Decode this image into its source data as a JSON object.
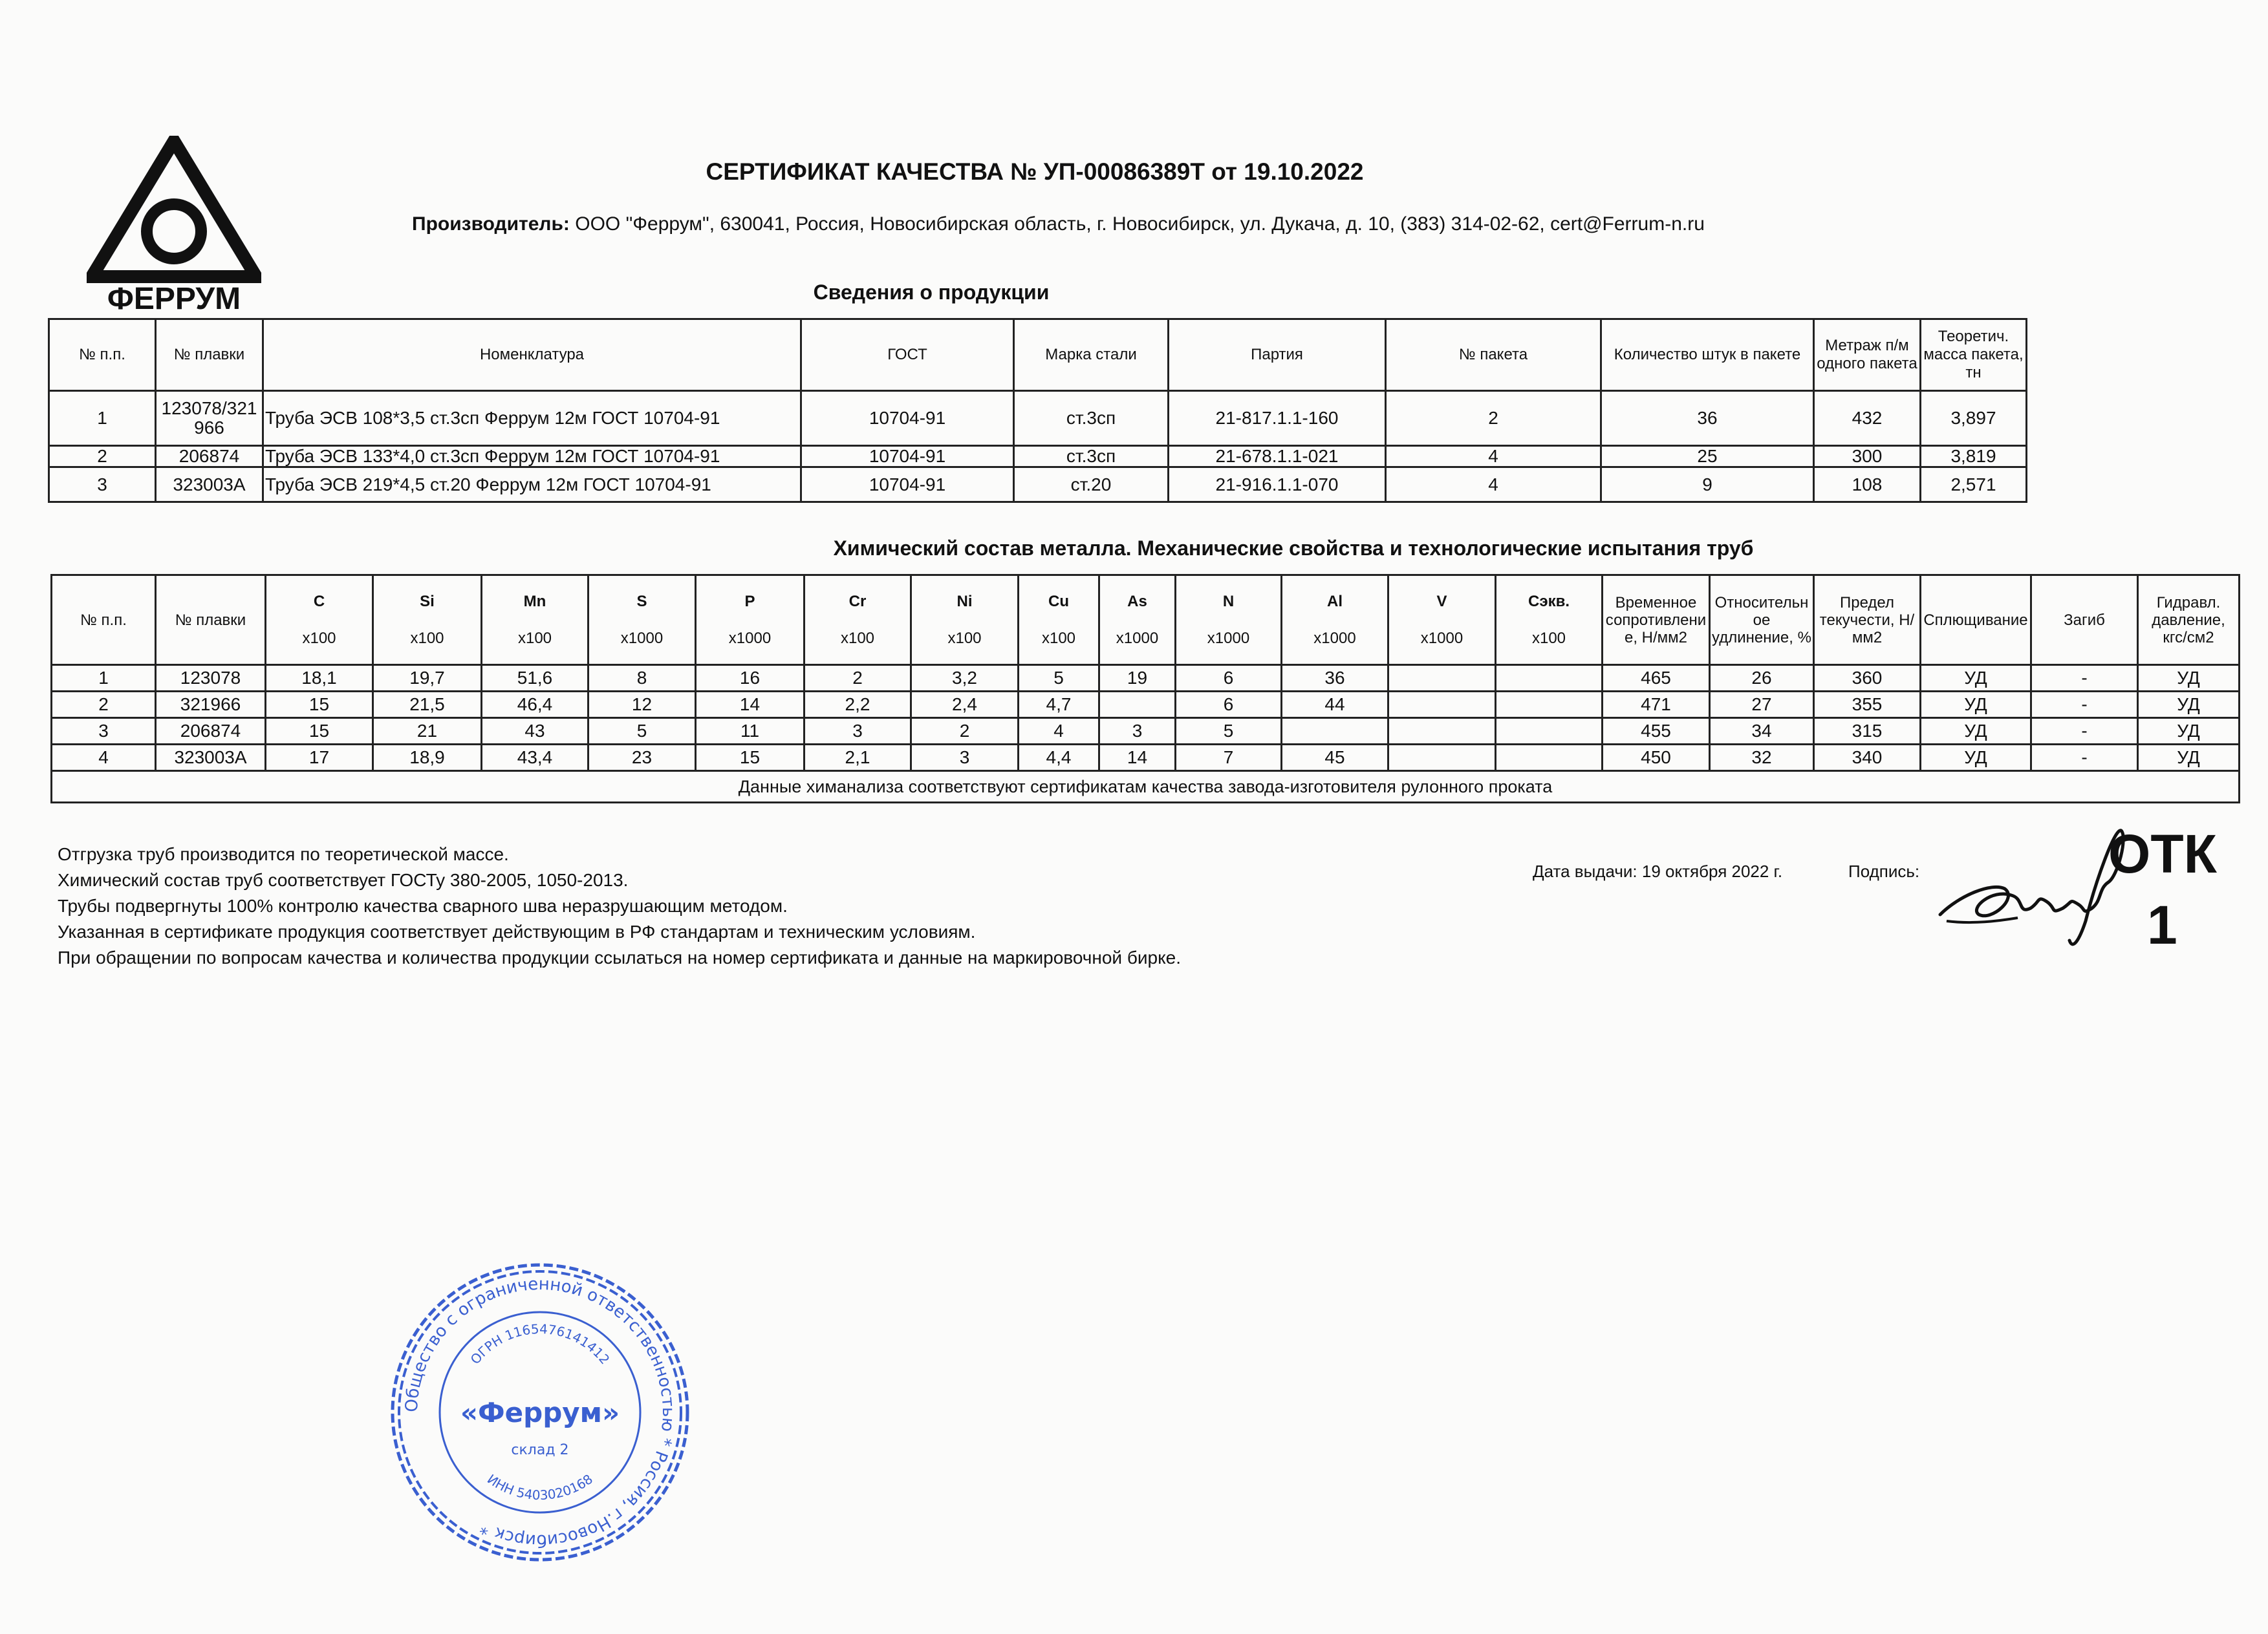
{
  "logo": {
    "text": "ФЕРРУМ"
  },
  "header": {
    "title": "СЕРТИФИКАТ КАЧЕСТВА № УП-00086389Т от 19.10.2022",
    "producer_label": "Производитель:",
    "producer_value": "ООО \"Феррум\", 630041, Россия, Новосибирская область, г. Новосибирск, ул. Дукача, д. 10, (383) 314-02-62, cert@Ferrum-n.ru"
  },
  "products": {
    "heading": "Сведения о продукции",
    "columns": [
      "№ п.п.",
      "№ плавки",
      "Номенклатура",
      "ГОСТ",
      "Марка стали",
      "Партия",
      "№ пакета",
      "Количество штук в пакете",
      "Метраж п/м одного пакета",
      "Теоретич. масса пакета, тн"
    ],
    "rows": [
      [
        "1",
        "123078/321966",
        "Труба ЭСВ 108*3,5 ст.3сп Феррум 12м ГОСТ 10704-91",
        "10704-91",
        "ст.3сп",
        "21-817.1.1-160",
        "2",
        "36",
        "432",
        "3,897"
      ],
      [
        "2",
        "206874",
        "Труба ЭСВ 133*4,0 ст.3сп Феррум 12м ГОСТ 10704-91",
        "10704-91",
        "ст.3сп",
        "21-678.1.1-021",
        "4",
        "25",
        "300",
        "3,819"
      ],
      [
        "3",
        "323003А",
        "Труба ЭСВ 219*4,5 ст.20 Феррум 12м ГОСТ 10704-91",
        "10704-91",
        "ст.20",
        "21-916.1.1-070",
        "4",
        "9",
        "108",
        "2,571"
      ]
    ]
  },
  "chemistry": {
    "heading": "Химический состав металла. Механические свойства  и технологические испытания труб",
    "columns": [
      {
        "label": "№ п.п.",
        "unit": ""
      },
      {
        "label": "№ плавки",
        "unit": ""
      },
      {
        "label": "C",
        "unit": "x100"
      },
      {
        "label": "Si",
        "unit": "x100"
      },
      {
        "label": "Mn",
        "unit": "x100"
      },
      {
        "label": "S",
        "unit": "x1000"
      },
      {
        "label": "P",
        "unit": "x1000"
      },
      {
        "label": "Cr",
        "unit": "x100"
      },
      {
        "label": "Ni",
        "unit": "x100"
      },
      {
        "label": "Cu",
        "unit": "x100"
      },
      {
        "label": "As",
        "unit": "x1000"
      },
      {
        "label": "N",
        "unit": "x1000"
      },
      {
        "label": "Al",
        "unit": "x1000"
      },
      {
        "label": "V",
        "unit": "x1000"
      },
      {
        "label": "Сэкв.",
        "unit": "x100"
      },
      {
        "label": "Временное сопротивление, Н/мм2",
        "unit": ""
      },
      {
        "label": "Относительное удлинение, %",
        "unit": ""
      },
      {
        "label": "Предел текучести, Н/мм2",
        "unit": ""
      },
      {
        "label": "Сплющивание",
        "unit": ""
      },
      {
        "label": "Загиб",
        "unit": ""
      },
      {
        "label": "Гидравл. давление, кгс/см2",
        "unit": ""
      }
    ],
    "rows": [
      [
        "1",
        "123078",
        "18,1",
        "19,7",
        "51,6",
        "8",
        "16",
        "2",
        "3,2",
        "5",
        "19",
        "6",
        "36",
        "",
        "",
        "465",
        "26",
        "360",
        "УД",
        "-",
        "УД"
      ],
      [
        "2",
        "321966",
        "15",
        "21,5",
        "46,4",
        "12",
        "14",
        "2,2",
        "2,4",
        "4,7",
        "",
        "6",
        "44",
        "",
        "",
        "471",
        "27",
        "355",
        "УД",
        "-",
        "УД"
      ],
      [
        "3",
        "206874",
        "15",
        "21",
        "43",
        "5",
        "11",
        "3",
        "2",
        "4",
        "3",
        "5",
        "",
        "",
        "",
        "455",
        "34",
        "315",
        "УД",
        "-",
        "УД"
      ],
      [
        "4",
        "323003А",
        "17",
        "18,9",
        "43,4",
        "23",
        "15",
        "2,1",
        "3",
        "4,4",
        "14",
        "7",
        "45",
        "",
        "",
        "450",
        "32",
        "340",
        "УД",
        "-",
        "УД"
      ]
    ],
    "footnote": "Данные химанализа соответствуют сертификатам качества завода-изготовителя рулонного проката"
  },
  "notes": [
    "Отгрузка труб производится по теоретической массе.",
    "Химический состав труб соответствует ГОСТу 380-2005, 1050-2013.",
    "Трубы подвергнуты 100% контролю качества сварного шва неразрушающим методом.",
    "Указанная в сертификате продукция соответствует действующим в РФ стандартам и техническим условиям.",
    "При обращении по вопросам качества и количества продукции ссылаться на номер сертификата и данные на маркировочной бирке."
  ],
  "footer": {
    "issue_date": "Дата выдачи: 19 октября 2022 г.",
    "signature_label": "Подпись:",
    "otk_stamp": "ОТК 1"
  },
  "stamp": {
    "outer_text": "Общество с ограниченной ответственностью * Россия, г.Новосибирск *",
    "name": "«Феррум»",
    "ogrn": "ОГРН 1165476141412",
    "inn": "ИНН 5403020168",
    "warehouse": "склад 2",
    "color": "#3a5fd0"
  }
}
